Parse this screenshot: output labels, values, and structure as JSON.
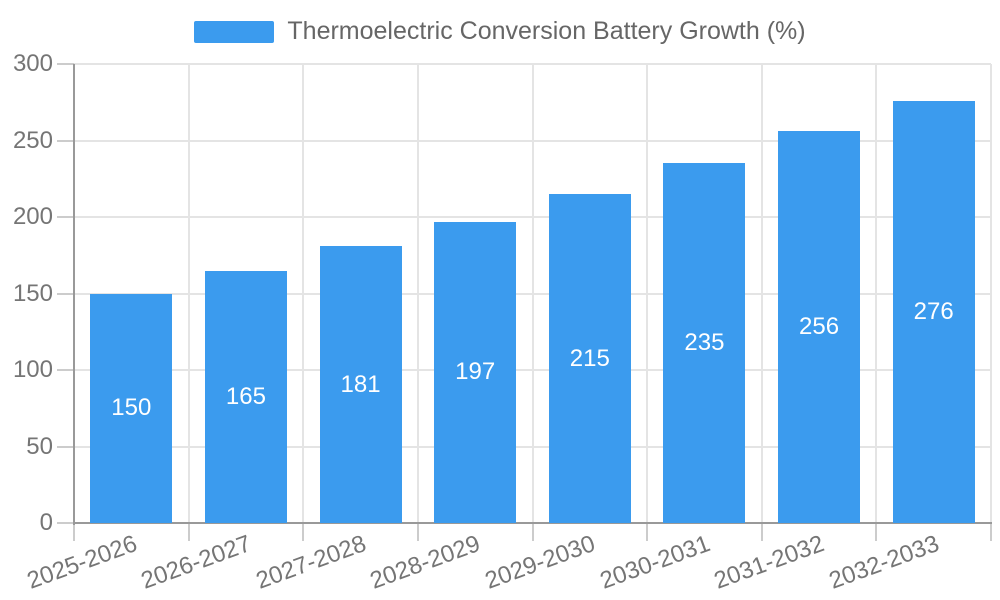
{
  "legend": {
    "label": "Thermoelectric Conversion Battery Growth (%)"
  },
  "colors": {
    "bar": "#3B9BEE",
    "grid": "#E4E4E4",
    "axis": "#999999",
    "tick": "#CCCCCC",
    "axis_label": "#757575",
    "value_label": "#FFFFFF",
    "legend_text": "#666666",
    "background": "#FFFFFF"
  },
  "chart_data": {
    "type": "bar",
    "title": "Thermoelectric Conversion Battery Growth (%)",
    "categories": [
      "2025-2026",
      "2026-2027",
      "2027-2028",
      "2028-2029",
      "2029-2030",
      "2030-2031",
      "2031-2032",
      "2032-2033"
    ],
    "series": [
      {
        "name": "Thermoelectric Conversion Battery Growth (%)",
        "values": [
          150,
          165,
          181,
          197,
          215,
          235,
          256,
          276
        ]
      }
    ],
    "xlabel": "",
    "ylabel": "",
    "ylim": [
      0,
      300
    ],
    "yticks": [
      0,
      50,
      100,
      150,
      200,
      250,
      300
    ],
    "grid": true,
    "value_labels": "inside-center",
    "legend_position": "top-center",
    "x_label_rotation": -20
  }
}
